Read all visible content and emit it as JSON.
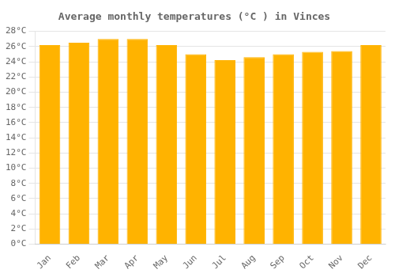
{
  "chart_data": {
    "type": "bar",
    "title": "Average monthly temperatures (°C ) in Vinces",
    "categories": [
      "Jan",
      "Feb",
      "Mar",
      "Apr",
      "May",
      "Jun",
      "Jul",
      "Aug",
      "Sep",
      "Oct",
      "Nov",
      "Dec"
    ],
    "values": [
      26.2,
      26.5,
      27.0,
      27.0,
      26.2,
      25.0,
      24.2,
      24.6,
      25.0,
      25.3,
      25.4,
      26.2
    ],
    "color": "#FFB300",
    "ylim": [
      0,
      28
    ],
    "yticks": [
      {
        "value": 0,
        "label": "0°C"
      },
      {
        "value": 2,
        "label": "2°C"
      },
      {
        "value": 4,
        "label": "4°C"
      },
      {
        "value": 6,
        "label": "6°C"
      },
      {
        "value": 8,
        "label": "8°C"
      },
      {
        "value": 10,
        "label": "10°C"
      },
      {
        "value": 12,
        "label": "12°C"
      },
      {
        "value": 14,
        "label": "14°C"
      },
      {
        "value": 16,
        "label": "16°C"
      },
      {
        "value": 18,
        "label": "18°C"
      },
      {
        "value": 20,
        "label": "20°C"
      },
      {
        "value": 22,
        "label": "22°C"
      },
      {
        "value": 24,
        "label": "24°C"
      },
      {
        "value": 26,
        "label": "26°C"
      },
      {
        "value": 28,
        "label": "28°C"
      }
    ],
    "grid": true
  }
}
